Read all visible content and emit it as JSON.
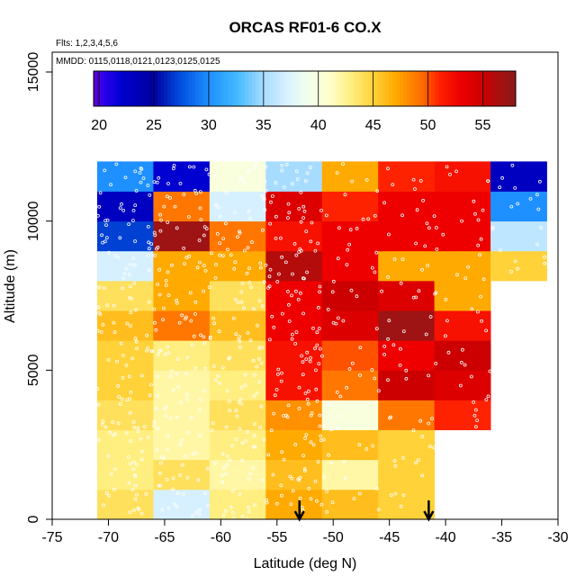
{
  "chart_data": {
    "type": "heatmap",
    "title": "ORCAS RF01-6 CO.X",
    "flights_note": "Flts: 1,2,3,4,5,6",
    "dates_note": "MMDD: 0115,0118,0121,0123,0125,0125",
    "xlabel": "Latitude (deg N)",
    "ylabel": "Altitude (m)",
    "xlim": [
      -75,
      -30
    ],
    "ylim": [
      0,
      16000
    ],
    "x_ticks": [
      -75,
      -70,
      -65,
      -60,
      -55,
      -50,
      -45,
      -40,
      -35,
      -30
    ],
    "y_ticks": [
      0,
      5000,
      10000,
      15000
    ],
    "x_bin_edges": [
      -71,
      -66,
      -61,
      -56,
      -51,
      -46,
      -41,
      -36,
      -31
    ],
    "altitude_bin_edges": [
      0,
      1000,
      2000,
      3000,
      4000,
      5000,
      6000,
      7000,
      8000,
      9000,
      10000,
      11000,
      12000
    ],
    "colorbar": {
      "min": 19.5,
      "max": 58,
      "ticks": [
        20,
        25,
        30,
        35,
        40,
        45,
        50,
        55
      ]
    },
    "grid": [
      [
        44,
        37,
        43,
        47,
        46,
        45,
        null,
        null
      ],
      [
        43,
        44,
        42,
        46,
        42,
        45,
        null,
        null
      ],
      [
        43,
        42,
        43,
        47,
        46,
        45,
        null,
        null
      ],
      [
        44,
        42,
        44,
        48,
        40,
        49,
        51,
        null
      ],
      [
        45,
        42,
        43,
        52,
        49,
        55,
        54,
        null
      ],
      [
        45,
        43,
        44,
        52,
        50,
        53,
        55,
        null
      ],
      [
        46,
        49,
        46,
        53,
        54,
        57,
        52,
        null
      ],
      [
        44,
        47,
        44,
        53,
        55,
        54,
        47,
        null
      ],
      [
        37,
        47,
        47,
        56,
        53,
        47,
        47,
        45
      ],
      [
        27,
        57,
        49,
        52,
        53,
        53,
        53,
        36
      ],
      [
        23,
        49,
        37,
        54,
        51,
        53,
        53,
        30
      ],
      [
        30,
        22,
        40,
        35,
        47,
        51,
        52,
        23
      ]
    ],
    "flight_arrows_latitude": [
      -53,
      -41.5
    ]
  },
  "colormap": {
    "stops": [
      [
        19.5,
        "#6600cc"
      ],
      [
        20.5,
        "#2a00ee"
      ],
      [
        22,
        "#0000d0"
      ],
      [
        25,
        "#0000a0"
      ],
      [
        27.5,
        "#0050e0"
      ],
      [
        30,
        "#1e90ff"
      ],
      [
        32.5,
        "#40b8ff"
      ],
      [
        35,
        "#a8dcff"
      ],
      [
        37,
        "#d6f0ff"
      ],
      [
        39,
        "#f2ffee"
      ],
      [
        41,
        "#ffffcc"
      ],
      [
        43,
        "#ffee80"
      ],
      [
        45,
        "#ffd23a"
      ],
      [
        47,
        "#ffaa00"
      ],
      [
        49.5,
        "#ff6a00"
      ],
      [
        51,
        "#ff2200"
      ],
      [
        53,
        "#ee0000"
      ],
      [
        55,
        "#cc0000"
      ],
      [
        56.5,
        "#a81010"
      ],
      [
        58,
        "#8b1a1a"
      ]
    ],
    "point_color": "#ffffff",
    "arrow_color": "#000000"
  }
}
